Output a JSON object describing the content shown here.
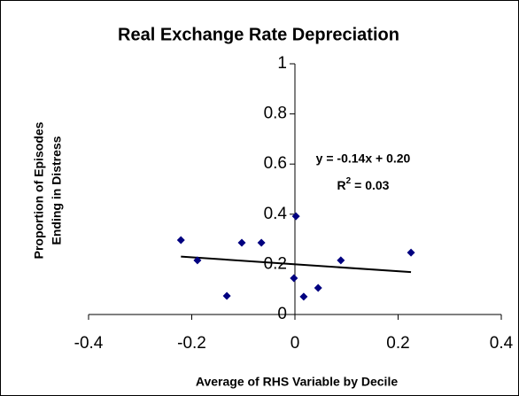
{
  "chart_data": {
    "type": "scatter",
    "title": "Real Exchange Rate Depreciation",
    "x_label": "Average of RHS Variable by Decile",
    "y_label": [
      "Proportion of Episodes",
      "Ending in Distress"
    ],
    "series": [
      {
        "color": "#000080",
        "x": [
          -0.221,
          -0.189,
          -0.132,
          -0.103,
          -0.065,
          0.002,
          -0.002,
          0.017,
          0.045,
          0.089,
          0.225
        ],
        "values": [
          0.297,
          0.216,
          0.074,
          0.286,
          0.286,
          0.392,
          0.145,
          0.071,
          0.106,
          0.216,
          0.247
        ]
      }
    ],
    "trendline": {
      "color": "#000000",
      "x": [
        -0.221,
        0.225
      ],
      "values": [
        0.231,
        0.169
      ]
    },
    "equation": "y = -0.14x + 0.20",
    "r_squared": {
      "base": "R",
      "sup": "2",
      "rest": " = 0.03"
    },
    "xlim": [
      -0.4,
      0.4
    ],
    "xticks": [
      -0.4,
      -0.2,
      0,
      0.2,
      0.4
    ],
    "ylim": [
      0,
      1
    ],
    "yticks": [
      0,
      0.2,
      0.4,
      0.6,
      0.8,
      1
    ]
  }
}
